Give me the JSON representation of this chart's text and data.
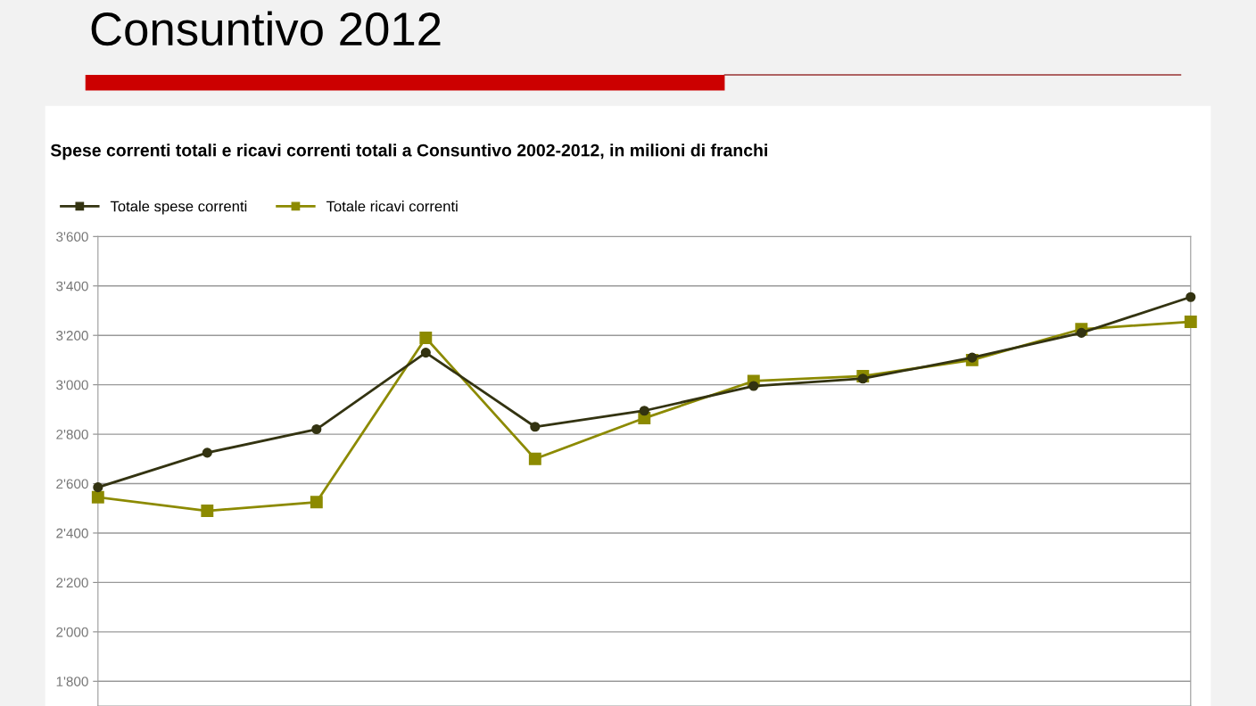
{
  "chart_data": {
    "type": "line",
    "title": "Consuntivo 2012",
    "subtitle": "Spese correnti totali e ricavi correnti totali a Consuntivo 2002-2012, in milioni di franchi",
    "categories": [
      null,
      null,
      null,
      null,
      null,
      null,
      null,
      null,
      null,
      null,
      null
    ],
    "series": [
      {
        "name": "Totale spese correnti",
        "color": "#333311",
        "marker": "circle",
        "values": [
          2585,
          2725,
          2820,
          3130,
          2830,
          2895,
          2995,
          3025,
          3110,
          3210,
          3355
        ]
      },
      {
        "name": "Totale ricavi correnti",
        "color": "#8c8a00",
        "marker": "square",
        "values": [
          2545,
          2490,
          2525,
          3190,
          2700,
          2865,
          3015,
          3035,
          3100,
          3225,
          3255
        ]
      }
    ],
    "ylim": [
      1700,
      3600
    ],
    "yticks": [
      {
        "value": 1800,
        "label": "1'800"
      },
      {
        "value": 2000,
        "label": "2'000"
      },
      {
        "value": 2200,
        "label": "2'200"
      },
      {
        "value": 2400,
        "label": "2'400"
      },
      {
        "value": 2600,
        "label": "2'600"
      },
      {
        "value": 2800,
        "label": "2'800"
      },
      {
        "value": 3000,
        "label": "3'000"
      },
      {
        "value": 3200,
        "label": "3'200"
      },
      {
        "value": 3400,
        "label": "3'400"
      },
      {
        "value": 3600,
        "label": "3'600"
      }
    ],
    "grid": "y",
    "legend": "top left",
    "line_style": "solid",
    "tick_labels": "y"
  }
}
